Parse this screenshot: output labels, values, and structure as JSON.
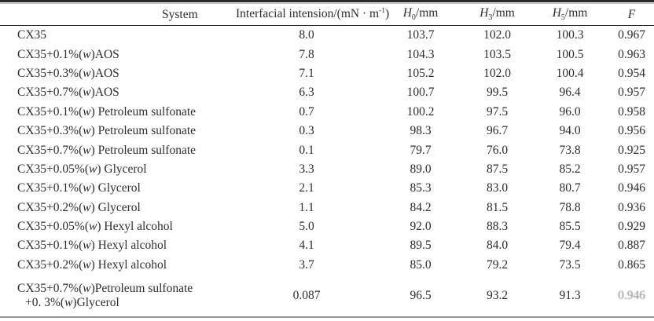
{
  "colors": {
    "text": "#2e2e2e",
    "rule_dark": "#2a2a2a",
    "rule_light": "#bdbdbd",
    "rule_bottom": "#8f959b",
    "faded_text": "#8c8c8c"
  },
  "table": {
    "headers": {
      "system": "System",
      "interfacial": {
        "pre": "Interfacial intension/(mN · m",
        "sup": "-1",
        "post": ")"
      },
      "h0": {
        "base": "H",
        "sub": "0",
        "unit": "/mm"
      },
      "h3": {
        "base": "H",
        "sub": "3",
        "unit": "/mm"
      },
      "h5": {
        "base": "H",
        "sub": "5",
        "unit": "/mm"
      },
      "f": "F"
    },
    "rows": [
      {
        "system_lines": [
          "CX35"
        ],
        "interfacial": "8.0",
        "h0": "103.7",
        "h3": "102.0",
        "h5": "100.3",
        "f": "0.967"
      },
      {
        "system_lines": [
          "CX35+0.1%(w)AOS"
        ],
        "interfacial": "7.8",
        "h0": "104.3",
        "h3": "103.5",
        "h5": "100.5",
        "f": "0.963"
      },
      {
        "system_lines": [
          "CX35+0.3%(w)AOS"
        ],
        "interfacial": "7.1",
        "h0": "105.2",
        "h3": "102.0",
        "h5": "100.4",
        "f": "0.954"
      },
      {
        "system_lines": [
          "CX35+0.7%(w)AOS"
        ],
        "interfacial": "6.3",
        "h0": "100.7",
        "h3": "99.5",
        "h5": "96.4",
        "f": "0.957"
      },
      {
        "system_lines": [
          "CX35+0.1%(w) Petroleum sulfonate"
        ],
        "interfacial": "0.7",
        "h0": "100.2",
        "h3": "97.5",
        "h5": "96.0",
        "f": "0.958"
      },
      {
        "system_lines": [
          "CX35+0.3%(w) Petroleum sulfonate"
        ],
        "interfacial": "0.3",
        "h0": "98.3",
        "h3": "96.7",
        "h5": "94.0",
        "f": "0.956"
      },
      {
        "system_lines": [
          "CX35+0.7%(w) Petroleum sulfonate"
        ],
        "interfacial": "0.1",
        "h0": "79.7",
        "h3": "76.0",
        "h5": "73.8",
        "f": "0.925"
      },
      {
        "system_lines": [
          "CX35+0.05%(w) Glycerol"
        ],
        "interfacial": "3.3",
        "h0": "89.0",
        "h3": "87.5",
        "h5": "85.2",
        "f": "0.957"
      },
      {
        "system_lines": [
          "CX35+0.1%(w) Glycerol"
        ],
        "interfacial": "2.1",
        "h0": "85.3",
        "h3": "83.0",
        "h5": "80.7",
        "f": "0.946"
      },
      {
        "system_lines": [
          "CX35+0.2%(w) Glycerol"
        ],
        "interfacial": "1.1",
        "h0": "84.2",
        "h3": "81.5",
        "h5": "78.8",
        "f": "0.936"
      },
      {
        "system_lines": [
          "CX35+0.05%(w) Hexyl alcohol"
        ],
        "interfacial": "5.0",
        "h0": "92.0",
        "h3": "88.3",
        "h5": "85.5",
        "f": "0.929"
      },
      {
        "system_lines": [
          "CX35+0.1%(w) Hexyl alcohol"
        ],
        "interfacial": "4.1",
        "h0": "89.5",
        "h3": "84.0",
        "h5": "79.4",
        "f": "0.887"
      },
      {
        "system_lines": [
          "CX35+0.2%(w) Hexyl alcohol"
        ],
        "interfacial": "3.7",
        "h0": "85.0",
        "h3": "79.2",
        "h5": "73.5",
        "f": "0.865"
      },
      {
        "system_lines": [
          "CX35+0.7%(w)Petroleum sulfonate",
          "+0. 3%(w)Glycerol"
        ],
        "interfacial": "0.087",
        "h0": "96.5",
        "h3": "93.2",
        "h5": "91.3",
        "f": "0.946",
        "f_faded": true,
        "tall": true
      }
    ]
  }
}
